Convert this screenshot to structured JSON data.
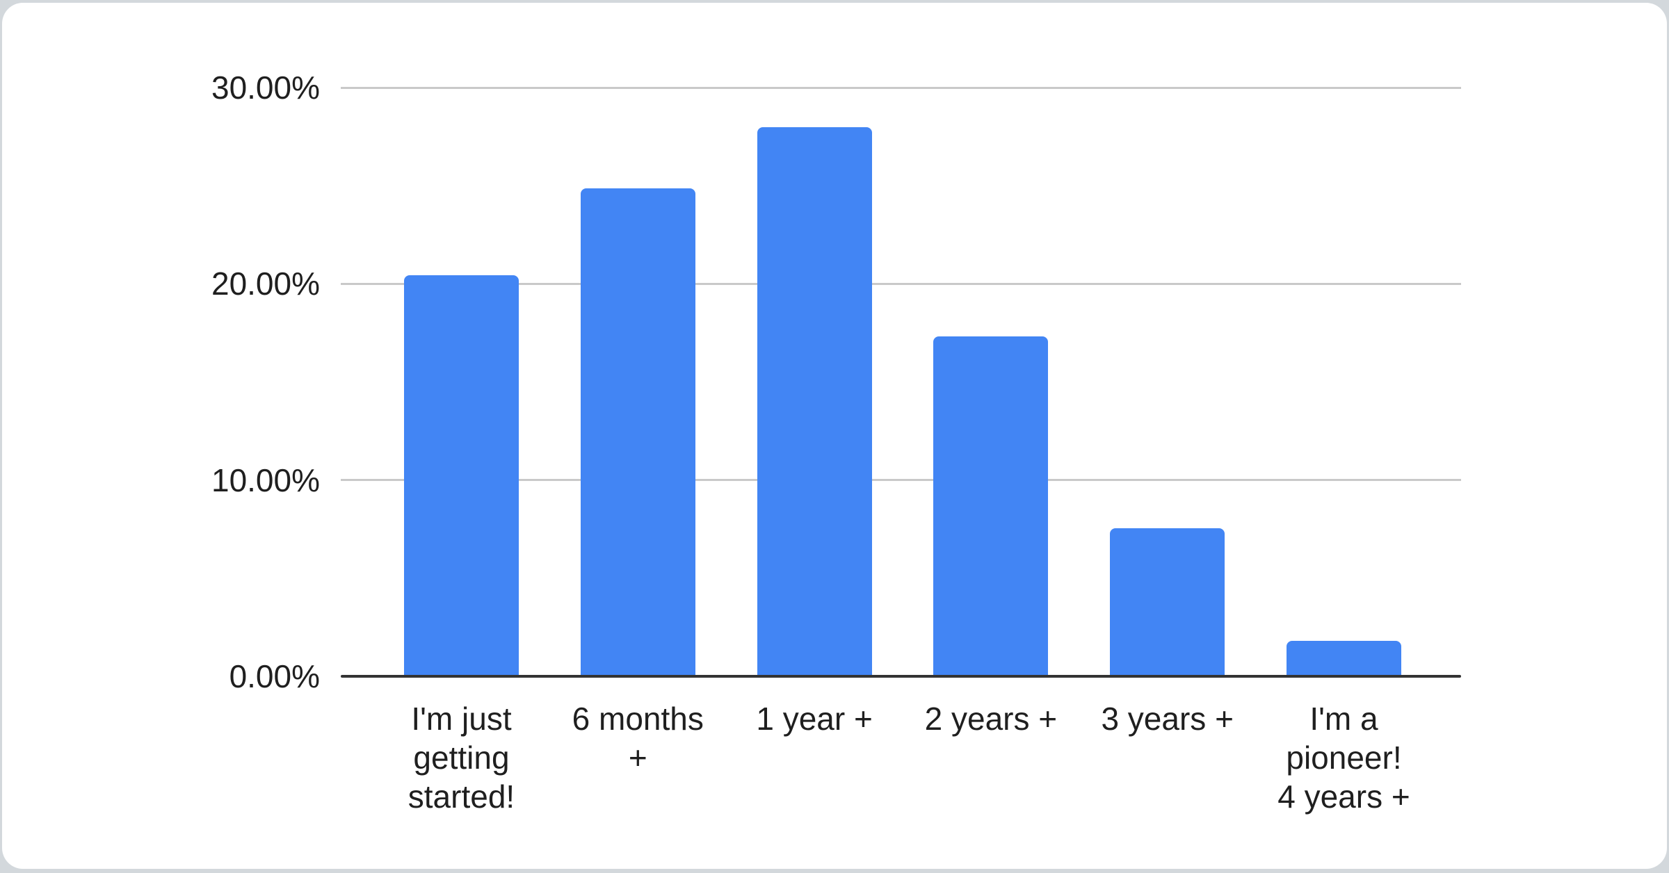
{
  "page": {
    "background_color": "#d3d8dc",
    "card_color": "#ffffff"
  },
  "chart_data": {
    "type": "bar",
    "title": "",
    "xlabel": "",
    "ylabel": "",
    "categories": [
      "I'm just getting started!",
      "6 months +",
      "1 year +",
      "2 years +",
      "3 years +",
      "I'm a pioneer! 4 years +"
    ],
    "category_lines": [
      [
        "I'm just",
        "getting",
        "started!"
      ],
      [
        "6 months",
        "+"
      ],
      [
        "1 year +"
      ],
      [
        "2 years +"
      ],
      [
        "3 years +"
      ],
      [
        "I'm a",
        "pioneer!",
        "4 years +"
      ]
    ],
    "values": [
      20.45,
      24.87,
      27.98,
      17.32,
      7.55,
      1.81
    ],
    "unit": "%",
    "ylim": [
      0,
      30
    ],
    "y_ticks": [
      {
        "label": "0.00%",
        "value": 0
      },
      {
        "label": "10.00%",
        "value": 10
      },
      {
        "label": "20.00%",
        "value": 20
      },
      {
        "label": "30.00%",
        "value": 30
      }
    ],
    "grid": true,
    "legend_position": "none",
    "bar_color": "#4285f4",
    "gridline_color": "#c9c9c9",
    "axis_line_color": "#333333",
    "text_color": "#1f1f1f"
  }
}
